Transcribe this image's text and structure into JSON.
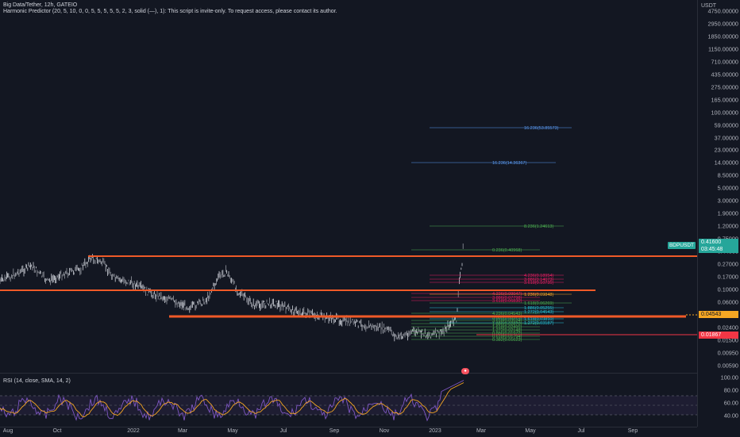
{
  "legend": {
    "title": "Big Data/Tether, 12h, GATEIO",
    "indicator": "Harmonic Predictor (20, 5, 10, 0, 0, 5, 5, 5, 5, 5, 2, 3, solid (—), 1): This script is invite-only. To request access, please contact its author."
  },
  "rsi": {
    "label": "RSI (14, close, SMA, 14, 2)"
  },
  "price_scale": {
    "currency": "USDT",
    "ticks": [
      "4750.00000",
      "2950.00000",
      "1850.00000",
      "1150.00000",
      "710.00000",
      "435.00000",
      "275.00000",
      "165.00000",
      "100.00000",
      "59.00000",
      "37.00000",
      "23.00000",
      "14.00000",
      "8.50000",
      "5.00000",
      "3.00000",
      "1.90000",
      "1.20000",
      "0.75000",
      "0.44000",
      "0.27000",
      "0.17000",
      "0.10000",
      "0.06000",
      "0.03700",
      "0.02400",
      "0.01500",
      "0.00950",
      "0.00590"
    ],
    "current_price": "0.41600",
    "countdown": "03:45:48",
    "line_price": "0.04543",
    "low_price": "0.01867",
    "symbol_badge": "BDPUSDT"
  },
  "rsi_scale": {
    "ticks": [
      "100.00",
      "80.00",
      "60.00",
      "40.00"
    ]
  },
  "time_axis": {
    "ticks": [
      "Aug",
      "Oct",
      "2022",
      "Mar",
      "May",
      "Jul",
      "Sep",
      "Nov",
      "2023",
      "Mar",
      "May",
      "Jul",
      "Sep"
    ]
  },
  "fib_labels": [
    "16.236(53.85573)",
    "16.236(14.36367)",
    "8.236(1.24613)",
    "0.236(0.40968)",
    "4.236(0.18954)",
    "3.886(0.14073)",
    "3.618(0.10735)",
    "4.236(0.09047)",
    "3.886(0.07798)",
    "3.618(0.06830)",
    "1.236(0.09848)",
    "1.618(0.06269)",
    "1.886(0.05255)",
    "1.272(0.04543)",
    "1.618(0.03810)",
    "1.272(0.03187)",
    "4.236(0.04543)",
    "3.886(0.03975)",
    "3.618(0.03524)",
    "1.886(0.02870)",
    "1.618(0.02495)",
    "1.272(0.02148)",
    "0.886(0.01972)",
    "0.618(0.01794)",
    "0.382(0.01623)"
  ],
  "colors": {
    "background": "#131722",
    "sr_line": "#f05a28",
    "rsi_line": "#7e57c2",
    "rsi_sma": "#f5a623",
    "price_tag": "#26a69a",
    "low_tag": "#f23645",
    "line_tag": "#f5a623"
  }
}
